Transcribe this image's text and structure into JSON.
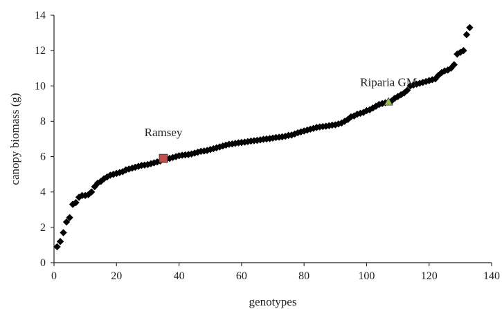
{
  "chart_data": {
    "type": "scatter",
    "xlabel": "genotypes",
    "ylabel": "canopy biomass (g)",
    "xlim": [
      0,
      140
    ],
    "ylim": [
      0,
      14
    ],
    "xticks": [
      0,
      20,
      40,
      60,
      80,
      100,
      120,
      140
    ],
    "yticks": [
      0,
      2,
      4,
      6,
      8,
      10,
      12,
      14
    ],
    "grid": false,
    "series": [
      {
        "marker": "diamond",
        "color": "#000000",
        "points": [
          [
            1,
            0.9
          ],
          [
            2,
            1.2
          ],
          [
            3,
            1.7
          ],
          [
            4,
            2.3
          ],
          [
            5,
            2.55
          ],
          [
            6,
            3.3
          ],
          [
            7,
            3.4
          ],
          [
            8,
            3.7
          ],
          [
            9,
            3.8
          ],
          [
            10,
            3.8
          ],
          [
            11,
            3.85
          ],
          [
            12,
            4.0
          ],
          [
            13,
            4.3
          ],
          [
            14,
            4.5
          ],
          [
            15,
            4.6
          ],
          [
            16,
            4.75
          ],
          [
            17,
            4.85
          ],
          [
            18,
            4.95
          ],
          [
            19,
            5.0
          ],
          [
            20,
            5.05
          ],
          [
            21,
            5.1
          ],
          [
            22,
            5.15
          ],
          [
            23,
            5.25
          ],
          [
            24,
            5.3
          ],
          [
            25,
            5.35
          ],
          [
            26,
            5.4
          ],
          [
            27,
            5.45
          ],
          [
            28,
            5.5
          ],
          [
            29,
            5.52
          ],
          [
            30,
            5.55
          ],
          [
            31,
            5.6
          ],
          [
            32,
            5.65
          ],
          [
            33,
            5.7
          ],
          [
            34,
            5.75
          ],
          [
            36,
            5.85
          ],
          [
            37,
            5.9
          ],
          [
            38,
            5.95
          ],
          [
            39,
            6.0
          ],
          [
            40,
            6.05
          ],
          [
            41,
            6.08
          ],
          [
            42,
            6.1
          ],
          [
            43,
            6.12
          ],
          [
            44,
            6.15
          ],
          [
            45,
            6.2
          ],
          [
            46,
            6.25
          ],
          [
            47,
            6.3
          ],
          [
            48,
            6.32
          ],
          [
            49,
            6.35
          ],
          [
            50,
            6.4
          ],
          [
            51,
            6.45
          ],
          [
            52,
            6.5
          ],
          [
            53,
            6.55
          ],
          [
            54,
            6.6
          ],
          [
            55,
            6.65
          ],
          [
            56,
            6.7
          ],
          [
            57,
            6.72
          ],
          [
            58,
            6.75
          ],
          [
            59,
            6.78
          ],
          [
            60,
            6.8
          ],
          [
            61,
            6.82
          ],
          [
            62,
            6.85
          ],
          [
            63,
            6.88
          ],
          [
            64,
            6.9
          ],
          [
            65,
            6.92
          ],
          [
            66,
            6.95
          ],
          [
            67,
            6.98
          ],
          [
            68,
            7.0
          ],
          [
            69,
            7.02
          ],
          [
            70,
            7.05
          ],
          [
            71,
            7.08
          ],
          [
            72,
            7.1
          ],
          [
            73,
            7.12
          ],
          [
            74,
            7.15
          ],
          [
            75,
            7.2
          ],
          [
            76,
            7.22
          ],
          [
            77,
            7.28
          ],
          [
            78,
            7.35
          ],
          [
            79,
            7.4
          ],
          [
            80,
            7.45
          ],
          [
            81,
            7.5
          ],
          [
            82,
            7.55
          ],
          [
            83,
            7.6
          ],
          [
            84,
            7.65
          ],
          [
            85,
            7.68
          ],
          [
            86,
            7.7
          ],
          [
            87,
            7.72
          ],
          [
            88,
            7.75
          ],
          [
            89,
            7.78
          ],
          [
            90,
            7.8
          ],
          [
            91,
            7.85
          ],
          [
            92,
            7.9
          ],
          [
            93,
            8.0
          ],
          [
            94,
            8.1
          ],
          [
            95,
            8.25
          ],
          [
            96,
            8.3
          ],
          [
            97,
            8.4
          ],
          [
            98,
            8.45
          ],
          [
            99,
            8.5
          ],
          [
            100,
            8.6
          ],
          [
            101,
            8.65
          ],
          [
            102,
            8.75
          ],
          [
            103,
            8.85
          ],
          [
            104,
            8.95
          ],
          [
            105,
            9.0
          ],
          [
            106,
            9.05
          ],
          [
            108,
            9.15
          ],
          [
            109,
            9.3
          ],
          [
            110,
            9.4
          ],
          [
            111,
            9.5
          ],
          [
            112,
            9.6
          ],
          [
            113,
            9.75
          ],
          [
            114,
            10.0
          ],
          [
            115,
            10.05
          ],
          [
            116,
            10.1
          ],
          [
            117,
            10.15
          ],
          [
            118,
            10.2
          ],
          [
            119,
            10.25
          ],
          [
            120,
            10.3
          ],
          [
            121,
            10.35
          ],
          [
            122,
            10.4
          ],
          [
            123,
            10.6
          ],
          [
            124,
            10.75
          ],
          [
            125,
            10.85
          ],
          [
            126,
            10.9
          ],
          [
            127,
            11.0
          ],
          [
            128,
            11.2
          ],
          [
            129,
            11.8
          ],
          [
            130,
            11.9
          ],
          [
            131,
            12.0
          ],
          [
            132,
            12.9
          ],
          [
            133,
            13.3
          ]
        ]
      },
      {
        "name": "Ramsey",
        "marker": "square",
        "color": "#c0504d",
        "points": [
          [
            35,
            5.9
          ]
        ]
      },
      {
        "name": "Riparia GM",
        "marker": "triangle",
        "color": "#9bbb59",
        "points": [
          [
            107,
            9.1
          ]
        ]
      }
    ],
    "annotations": [
      {
        "text": "Ramsey",
        "x": 35,
        "y": 5.9
      },
      {
        "text": "Riparia GM",
        "x": 107,
        "y": 9.1
      }
    ]
  }
}
